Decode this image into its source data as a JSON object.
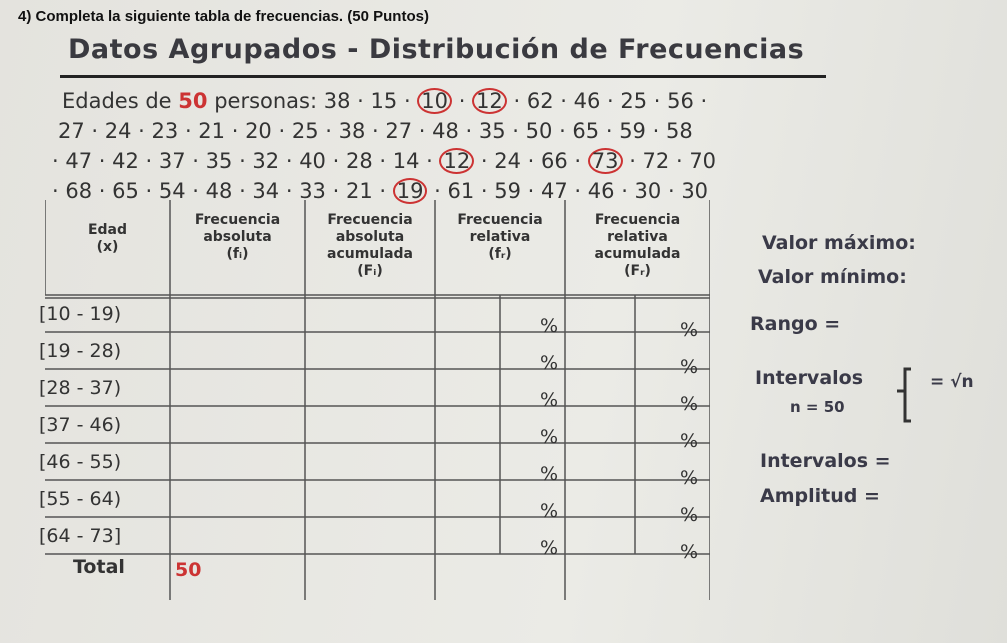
{
  "question": "4) Completa la siguiente tabla de frecuencias. (50 Puntos)",
  "banner": "Datos Agrupados - Distribución de Frecuencias",
  "ages": {
    "prefix": "Edades de",
    "count": "50",
    "suffix": "personas:",
    "lines": [
      [
        38,
        15,
        10,
        12,
        62,
        46,
        25,
        56
      ],
      [
        27,
        24,
        23,
        21,
        20,
        25,
        38,
        27,
        48,
        35,
        50,
        65,
        59,
        58
      ],
      [
        47,
        42,
        37,
        35,
        32,
        40,
        28,
        14,
        12,
        24,
        66,
        73,
        72,
        70
      ],
      [
        68,
        65,
        54,
        48,
        34,
        33,
        21,
        19,
        61,
        59,
        47,
        46,
        30,
        30
      ]
    ],
    "circled": [
      [
        0,
        2
      ],
      [
        0,
        3
      ],
      [
        2,
        8
      ],
      [
        2,
        11
      ],
      [
        3,
        7
      ]
    ]
  },
  "table": {
    "headers": [
      [
        "Edad",
        "(x)"
      ],
      [
        "Frecuencia",
        "absoluta",
        "(fᵢ)"
      ],
      [
        "Frecuencia",
        "absoluta",
        "acumulada",
        "(Fᵢ)"
      ],
      [
        "Frecuencia",
        "relativa",
        "(fᵣ)"
      ],
      [
        "Frecuencia",
        "relativa",
        "acumulada",
        "(Fᵣ)"
      ]
    ],
    "rows": [
      "[10 - 19)",
      "[19 - 28)",
      "[28 - 37)",
      "[37 - 46)",
      "[46 - 55)",
      "[55 - 64)",
      "[64 - 73]"
    ],
    "percent": "%",
    "total_label": "Total",
    "total_value": "50"
  },
  "side": {
    "max": "Valor máximo:",
    "min": "Valor mínimo:",
    "range": "Rango =",
    "intervals": "Intervalos",
    "n": "n = 50",
    "sqrt": "= √n",
    "intervals2": "Intervalos =",
    "width": "Amplitud ="
  }
}
